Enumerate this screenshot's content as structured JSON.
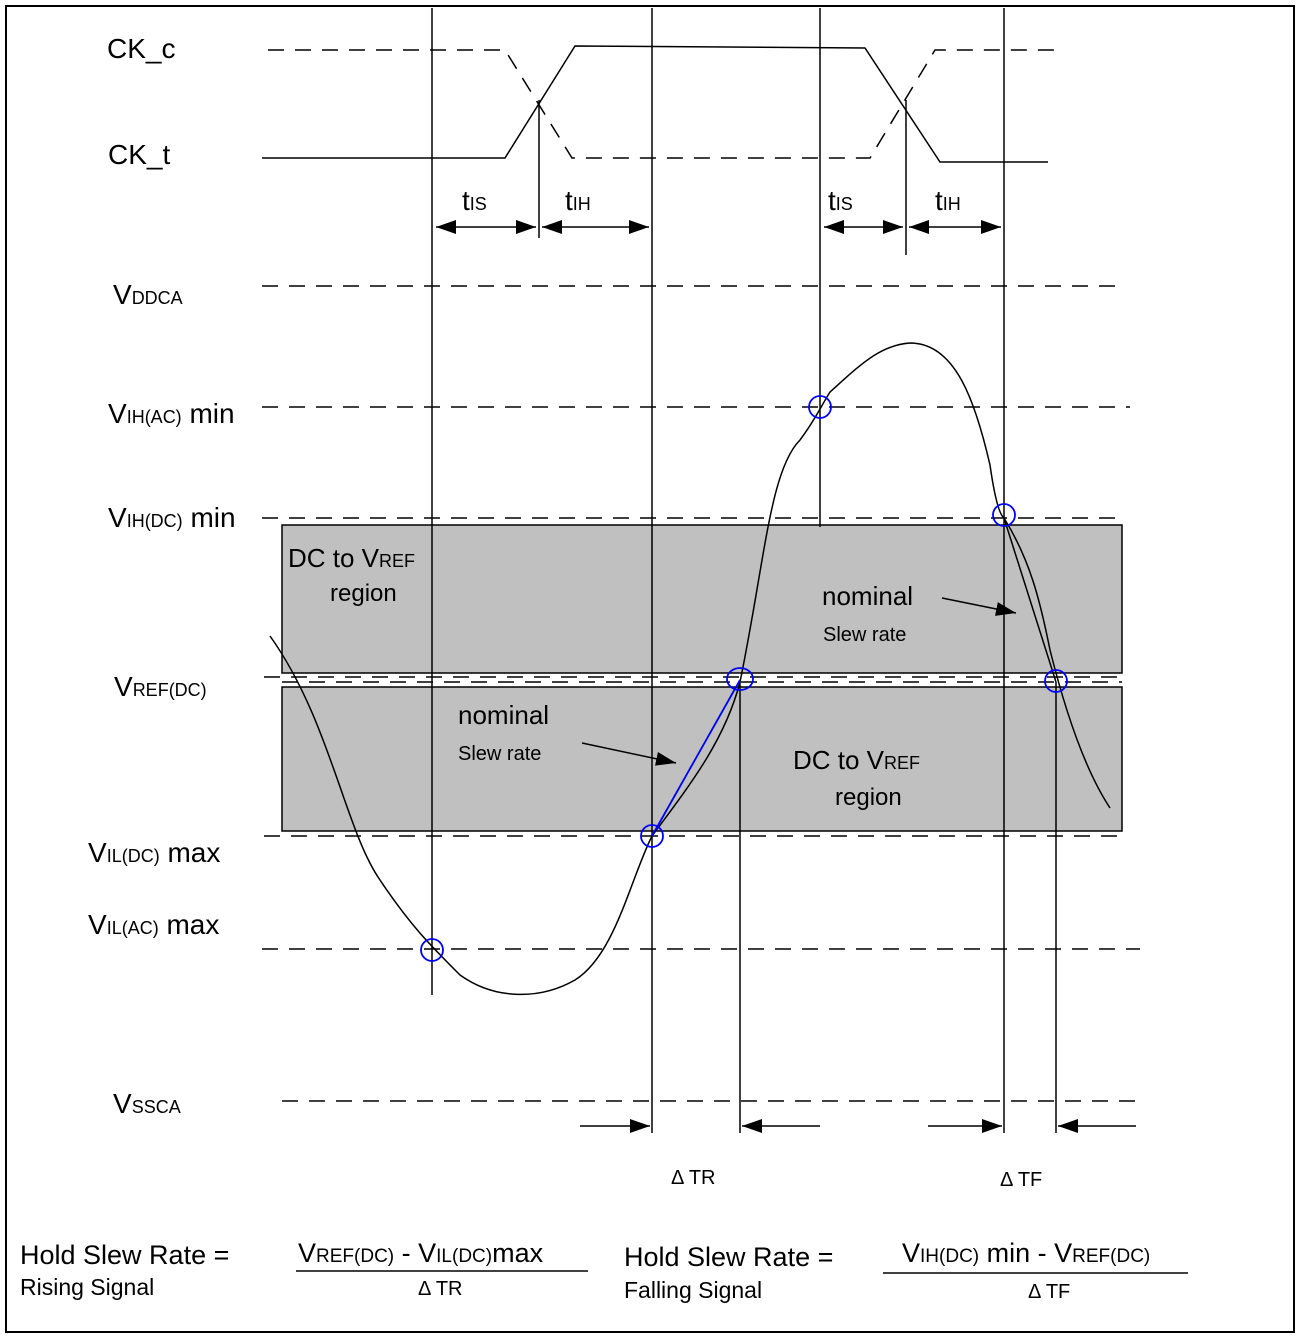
{
  "clock": {
    "ck_c": "CK_c",
    "ck_t": "CK_t"
  },
  "timing": {
    "t_is_1": {
      "main": "t",
      "sub": "IS"
    },
    "t_ih_1": {
      "main": "t",
      "sub": "IH"
    },
    "t_is_2": {
      "main": "t",
      "sub": "IS"
    },
    "t_ih_2": {
      "main": "t",
      "sub": "IH"
    }
  },
  "levels": {
    "vddca": {
      "main": "V",
      "sub": "DDCA",
      "suffix": ""
    },
    "vih_ac": {
      "main": "V",
      "sub": "IH(AC)",
      "suffix": " min"
    },
    "vih_dc": {
      "main": "V",
      "sub": "IH(DC)",
      "suffix": " min"
    },
    "vref": {
      "main": "V",
      "sub": "REF(DC)",
      "suffix": ""
    },
    "vil_dc": {
      "main": "V",
      "sub": "IL(DC)",
      "suffix": " max"
    },
    "vil_ac": {
      "main": "V",
      "sub": "IL(AC)",
      "suffix": " max"
    },
    "vssca": {
      "main": "V",
      "sub": "SSCA",
      "suffix": ""
    }
  },
  "regions": {
    "upper": {
      "line1": "DC to V",
      "line1_sub": "REF",
      "line2": "region"
    },
    "lower": {
      "line1": "DC to V",
      "line1_sub": "REF",
      "line2": "region"
    }
  },
  "annotations": {
    "nominal_upper": {
      "line1": "nominal",
      "line2": "Slew rate"
    },
    "nominal_lower": {
      "line1": "nominal",
      "line2": "Slew rate"
    },
    "delta_tr": "Δ TR",
    "delta_tf": "Δ TF"
  },
  "equations": {
    "rising": {
      "lhs": "Hold Slew Rate = ",
      "caption": "Rising Signal",
      "num_v1": "V",
      "num_v1_sub": "REF(DC)",
      "num_mid": " - V",
      "num_v2_sub": "IL(DC)",
      "num_end": "max",
      "den": "Δ TR"
    },
    "falling": {
      "lhs": "Hold Slew Rate = ",
      "caption": "Falling Signal",
      "num_v1": "V",
      "num_v1_sub": "IH(DC)",
      "num_mid": " min - V",
      "num_v2_sub": "REF(DC)",
      "num_end": "",
      "den": "Δ TF"
    }
  },
  "colors": {
    "line": "#000000",
    "region_fill": "#c0c0c0",
    "marker": "#0000ff",
    "slew_line": "#0000ff"
  }
}
